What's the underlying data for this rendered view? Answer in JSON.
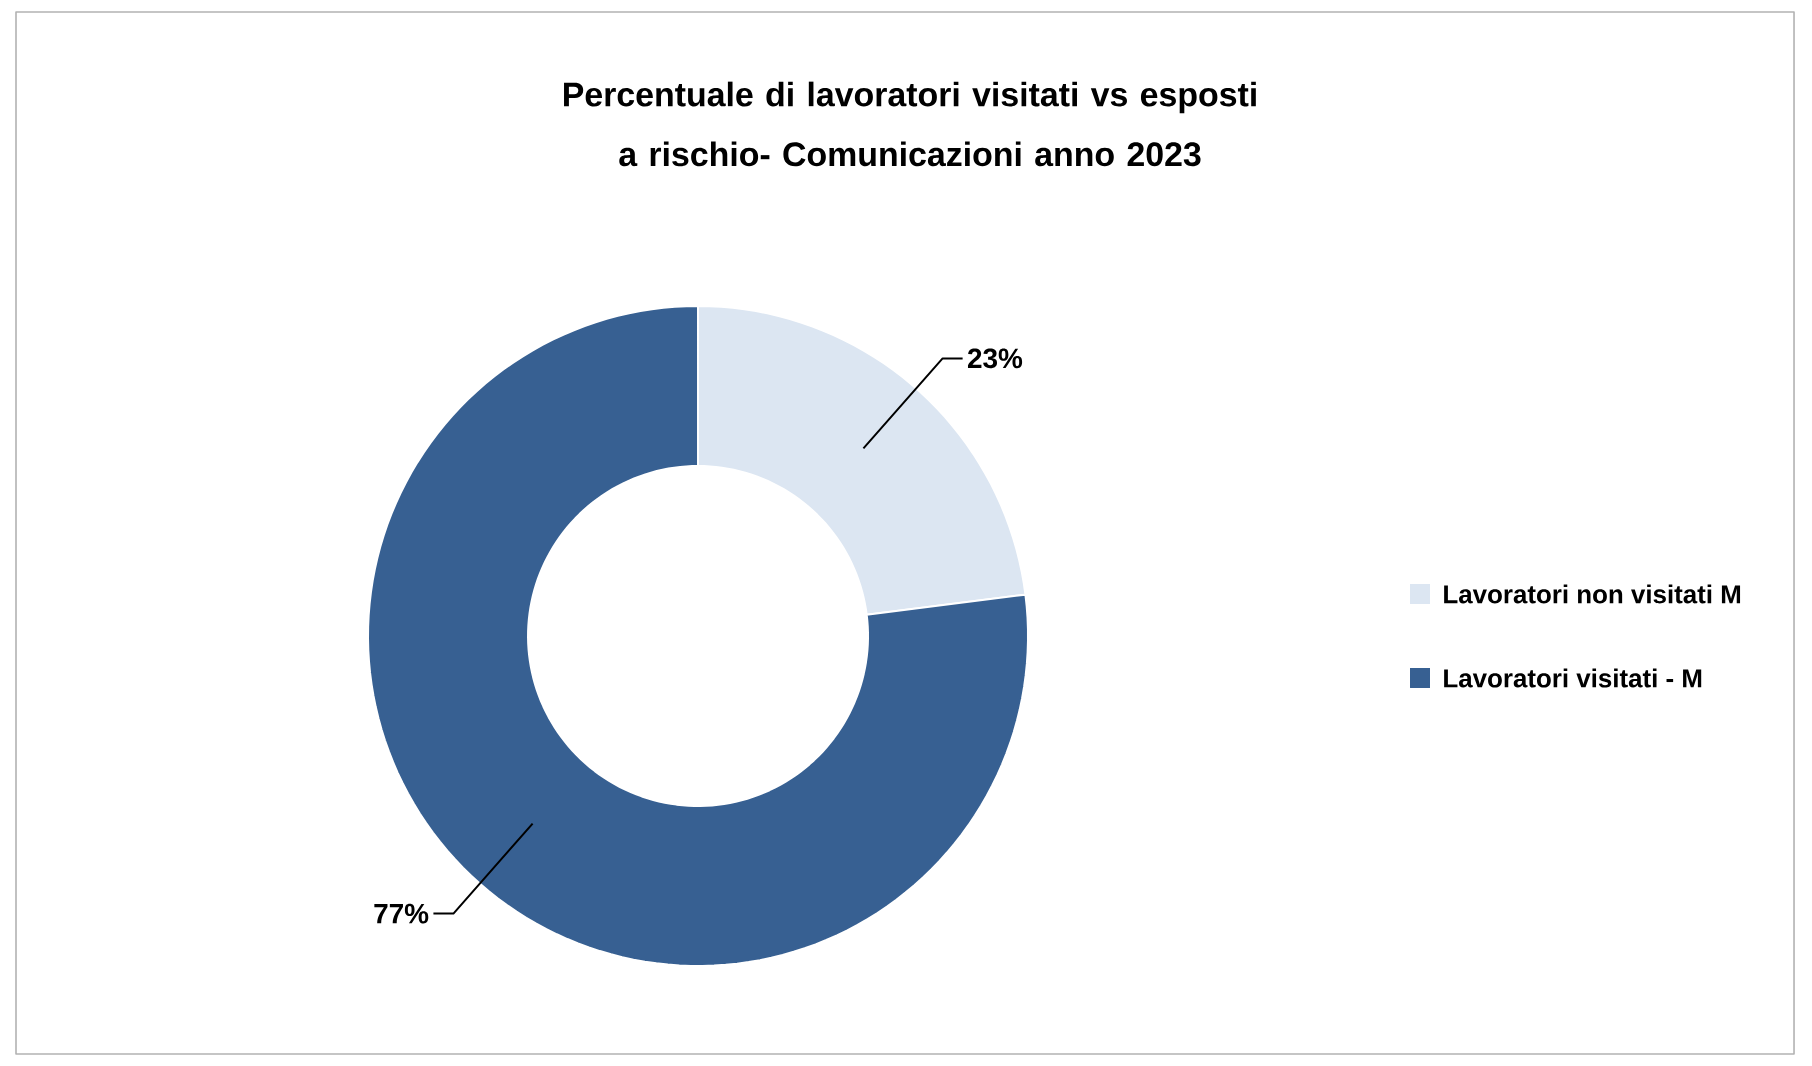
{
  "chart_data": {
    "type": "donut",
    "title": "Percentuale di lavoratori visitati vs esposti a rischio- Comunicazioni anno 2023",
    "categories": [
      "Lavoratori non visitati M",
      "Lavoratori visitati - M"
    ],
    "values": [
      23,
      77
    ],
    "colors": [
      "#dce6f2",
      "#376092"
    ],
    "data_labels": true,
    "value_labels": [
      "23%",
      "77%"
    ],
    "legend": "right"
  }
}
